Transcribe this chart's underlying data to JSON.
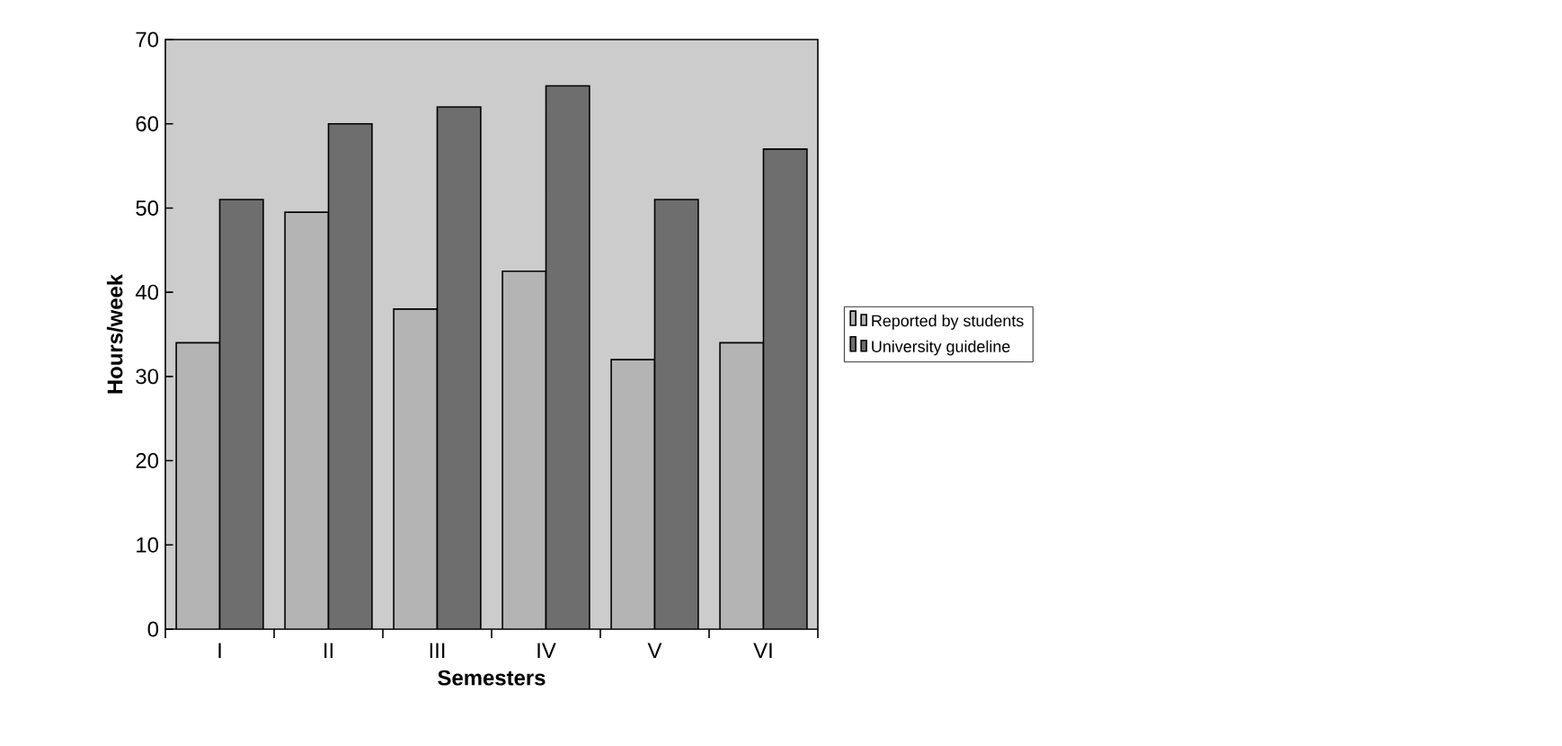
{
  "chart_data": {
    "type": "bar",
    "xlabel": "Semesters",
    "ylabel": "Hours/week",
    "categories": [
      "I",
      "II",
      "III",
      "IV",
      "V",
      "VI"
    ],
    "series": [
      {
        "name": "Reported by students",
        "color": "#b4b4b4",
        "values": [
          34,
          49.5,
          38,
          42.5,
          32,
          34
        ]
      },
      {
        "name": "University guideline",
        "color": "#6e6e6e",
        "values": [
          51,
          60,
          62,
          64.5,
          51,
          57
        ]
      }
    ],
    "ylim": [
      0,
      70
    ],
    "yticks": [
      0,
      10,
      20,
      30,
      40,
      50,
      60,
      70
    ],
    "legend": "right",
    "grid": false
  }
}
